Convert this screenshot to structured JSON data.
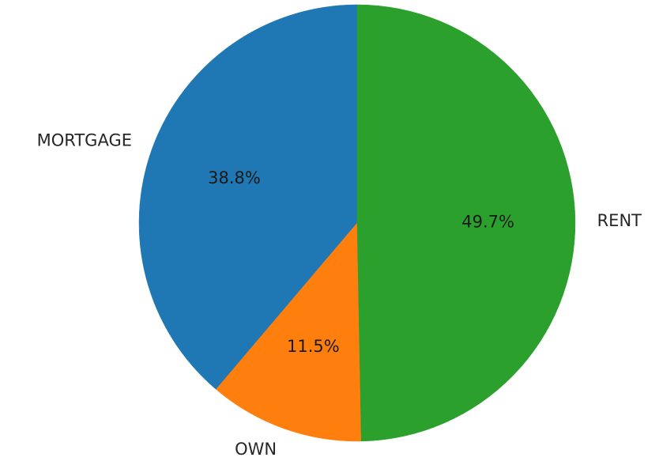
{
  "chart_data": {
    "type": "pie",
    "start_angle_deg": 90,
    "direction": "counterclockwise",
    "slices": [
      {
        "label": "MORTGAGE",
        "value": 38.8,
        "pct_label": "38.8%",
        "color": "#1f77b4"
      },
      {
        "label": "OWN",
        "value": 11.5,
        "pct_label": "11.5%",
        "color": "#ff7f0e"
      },
      {
        "label": "RENT",
        "value": 49.7,
        "pct_label": "49.7%",
        "color": "#2ca02c"
      }
    ]
  }
}
